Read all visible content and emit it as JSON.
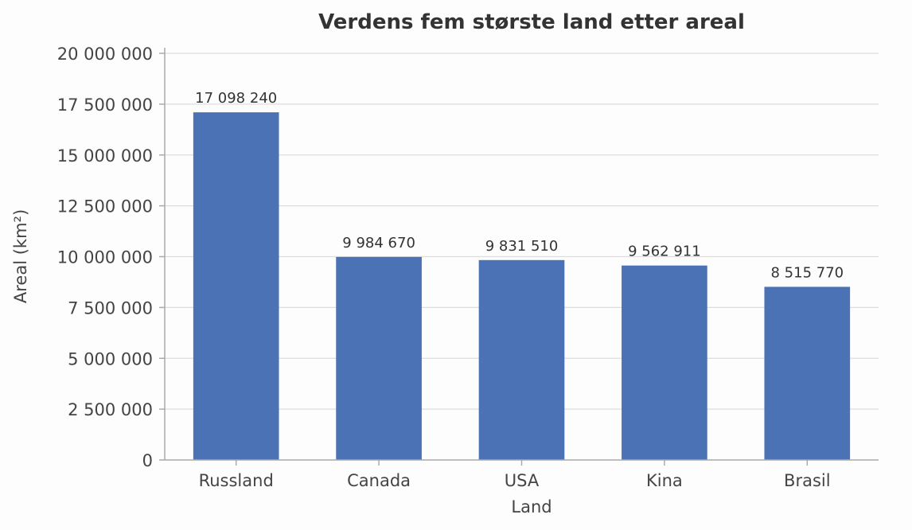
{
  "chart_data": {
    "type": "bar",
    "title": "Verdens fem største land etter areal",
    "xlabel": "Land",
    "ylabel": "Areal (km²)",
    "categories": [
      "Russland",
      "Canada",
      "USA",
      "Kina",
      "Brasil"
    ],
    "values": [
      17098240,
      9984670,
      9831510,
      9562911,
      8515770
    ],
    "value_labels": [
      "17 098 240",
      "9 984 670",
      "9 831 510",
      "9 562 911",
      "8 515 770"
    ],
    "ylim": [
      0,
      20000000
    ],
    "yticks": [
      0,
      2500000,
      5000000,
      7500000,
      10000000,
      12500000,
      15000000,
      17500000,
      20000000
    ],
    "ytick_labels": [
      "0",
      "2 500 000",
      "5 000 000",
      "7 500 000",
      "10 000 000",
      "12 500 000",
      "15 000 000",
      "17 500 000",
      "20 000 000"
    ],
    "grid": true,
    "colors": {
      "bar": "#4a72b5",
      "grid": "#dddddd",
      "axis": "#aaaaaa"
    }
  }
}
